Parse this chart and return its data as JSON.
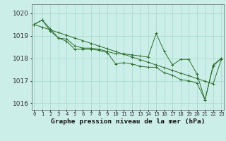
{
  "title": "Graphe pression niveau de la mer (hPa)",
  "background_color": "#cceee8",
  "grid_color": "#aaddcc",
  "line_color": "#2d6e2d",
  "x_labels": [
    "0",
    "1",
    "2",
    "3",
    "4",
    "5",
    "6",
    "7",
    "8",
    "9",
    "10",
    "11",
    "12",
    "13",
    "14",
    "15",
    "16",
    "17",
    "18",
    "19",
    "20",
    "21",
    "22",
    "23"
  ],
  "series": [
    [
      1019.5,
      1019.7,
      1019.3,
      1018.9,
      1018.85,
      1018.55,
      1018.45,
      1018.45,
      1018.4,
      1018.3,
      1018.2,
      1018.2,
      1018.15,
      1018.1,
      1018.05,
      1019.1,
      1018.3,
      1017.7,
      1017.95,
      1017.95,
      1017.3,
      1016.15,
      1017.7,
      1018.0
    ],
    [
      1019.5,
      1019.7,
      1019.2,
      1018.9,
      1018.75,
      1018.4,
      1018.4,
      1018.4,
      1018.35,
      1018.25,
      1017.75,
      1017.8,
      1017.75,
      1017.65,
      1017.6,
      1017.6,
      1017.35,
      1017.25,
      1017.05,
      1017.0,
      1016.9,
      1016.15,
      1017.65,
      1018.0
    ],
    [
      1019.5,
      1019.38,
      1019.26,
      1019.14,
      1019.02,
      1018.9,
      1018.78,
      1018.66,
      1018.54,
      1018.42,
      1018.3,
      1018.18,
      1018.06,
      1017.94,
      1017.82,
      1017.7,
      1017.58,
      1017.46,
      1017.34,
      1017.22,
      1017.1,
      1016.98,
      1016.86,
      1017.95
    ]
  ],
  "ylim": [
    1015.7,
    1020.4
  ],
  "yticks": [
    1016,
    1017,
    1018,
    1019,
    1020
  ],
  "xlabel_fontsize": 5.2,
  "ylabel_fontsize": 6.5,
  "title_fontsize": 6.8
}
